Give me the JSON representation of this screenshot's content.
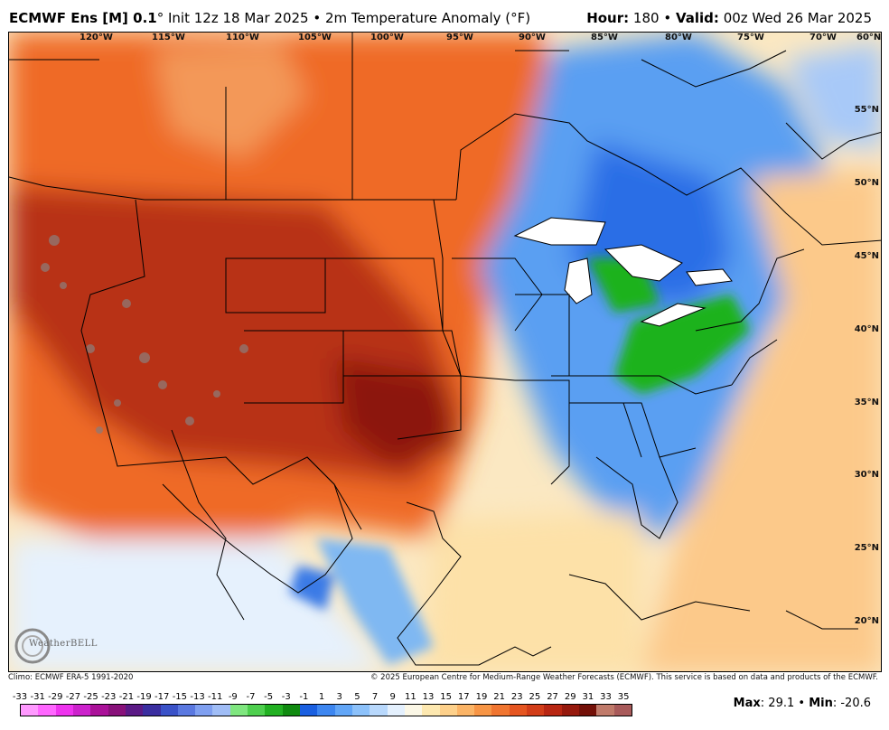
{
  "header": {
    "model": "ECMWF Ens [M] 0.1",
    "degree": "°",
    "init": "Init 12z 18 Mar 2025",
    "bullet": "•",
    "variable": "2m Temperature Anomaly (°F)",
    "hour_label": "Hour:",
    "hour": "180",
    "valid_label": "Valid:",
    "valid": "00z Wed 26 Mar 2025"
  },
  "map": {
    "lon_labels": [
      "120°W",
      "115°W",
      "110°W",
      "105°W",
      "100°W",
      "95°W",
      "90°W",
      "85°W",
      "80°W",
      "75°W",
      "70°W",
      "60°N"
    ],
    "lat_labels": [
      "55°N",
      "50°N",
      "45°N",
      "40°N",
      "35°N",
      "30°N",
      "25°N",
      "20°N"
    ],
    "logo": "WeatherBELL"
  },
  "footer": {
    "climo": "Climo: ECMWF ERA-5 1991-2020",
    "copyright": "© 2025 European Centre for Medium-Range Weather Forecasts (ECMWF). This service is based on data and products of the ECMWF."
  },
  "colorbar": {
    "labels": [
      "-33",
      "-31",
      "-29",
      "-27",
      "-25",
      "-23",
      "-21",
      "-19",
      "-17",
      "-15",
      "-13",
      "-11",
      "-9",
      "-7",
      "-5",
      "-3",
      "-1",
      "1",
      "3",
      "5",
      "7",
      "9",
      "11",
      "13",
      "15",
      "17",
      "19",
      "21",
      "23",
      "25",
      "27",
      "29",
      "31",
      "33",
      "35"
    ],
    "colors": [
      "#ff99ff",
      "#ff66ff",
      "#ee33ee",
      "#cc22cc",
      "#aa1199",
      "#88117a",
      "#5b1a86",
      "#3a2ea0",
      "#3a52c8",
      "#5a78e0",
      "#7f9ff0",
      "#a0bdf6",
      "#7fe67f",
      "#4ecf4e",
      "#22b022",
      "#108a10",
      "#1a5fe0",
      "#3d86f0",
      "#62a6f7",
      "#8cc1fa",
      "#b8d8fc",
      "#e4f0fd",
      "#fbf7e6",
      "#fde8b0",
      "#fdd08a",
      "#fbb466",
      "#f79545",
      "#f07530",
      "#e55520",
      "#d23d18",
      "#b82612",
      "#96190d",
      "#731008",
      "#c07a6a",
      "#a85a5a"
    ]
  },
  "stats": {
    "max_label": "Max",
    "max": "29.1",
    "min_label": "Min",
    "min": "-20.6"
  }
}
